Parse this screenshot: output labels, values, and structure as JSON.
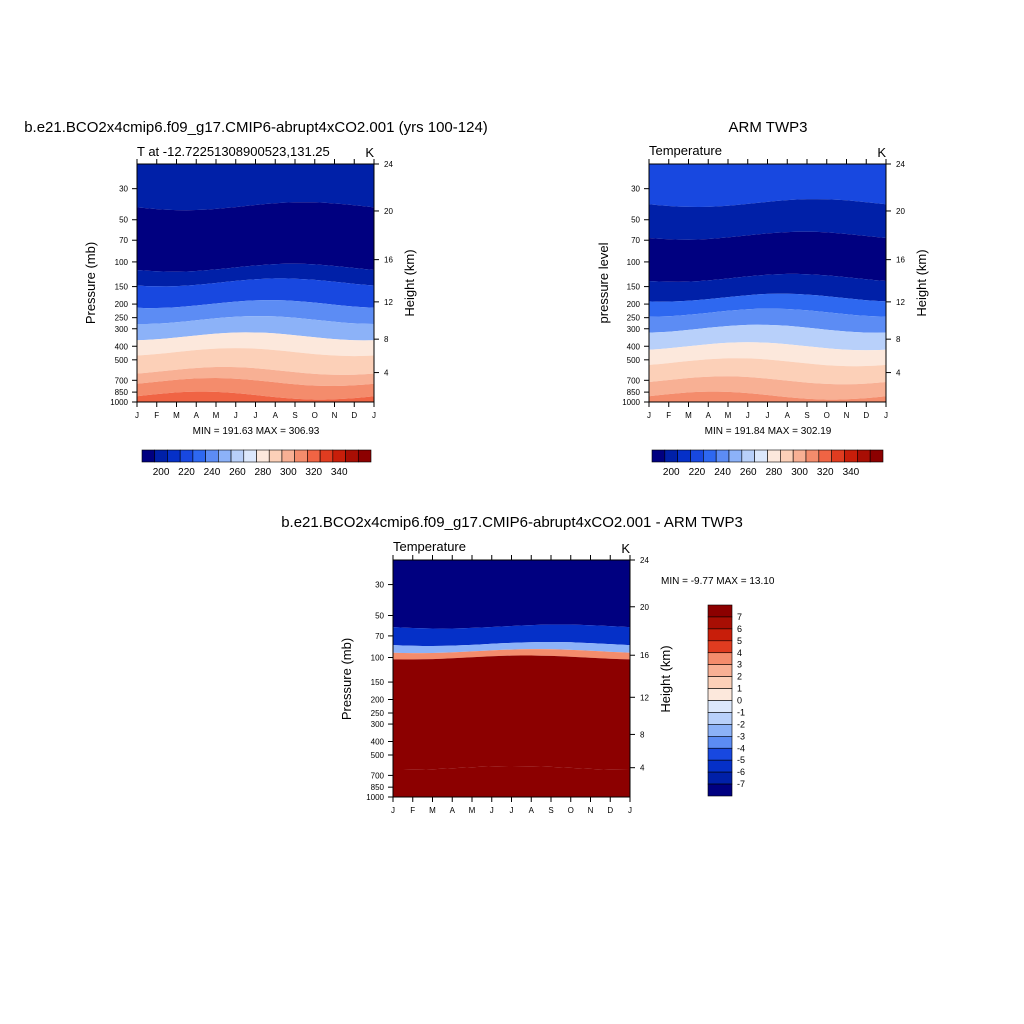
{
  "chart_data": [
    {
      "type": "heatmap",
      "title": "b.e21.BCO2x4cmip6.f09_g17.CMIP6-abrupt4xCO2.001 (yrs 100-124)",
      "subtitle_left": "T at -12.72251308900523,131.25",
      "units": "K",
      "ylabel": "Pressure (mb)",
      "ylabel_right": "Height (km)",
      "x_ticks": [
        "J",
        "F",
        "M",
        "A",
        "M",
        "J",
        "J",
        "A",
        "S",
        "O",
        "N",
        "D",
        "J"
      ],
      "y_ticks": [
        30,
        50,
        70,
        100,
        150,
        200,
        250,
        300,
        400,
        500,
        700,
        850,
        1000
      ],
      "y_right_ticks": [
        4,
        8,
        12,
        16,
        20,
        24
      ],
      "y_range_mb": [
        1000,
        20
      ],
      "stats": "MIN = 191.63 MAX = 306.93",
      "colorbar_ticks": [
        "200",
        "220",
        "240",
        "260",
        "280",
        "300",
        "320",
        "340"
      ],
      "colorbar_levels": [
        190,
        200,
        210,
        220,
        230,
        240,
        250,
        260,
        270,
        280,
        290,
        300,
        310,
        320,
        330,
        340
      ],
      "bands_approx_K_by_pressure": [
        {
          "p_mb": [
            20,
            40
          ],
          "value": 205
        },
        {
          "p_mb": [
            40,
            110
          ],
          "value": 195
        },
        {
          "p_mb": [
            110,
            140
          ],
          "value": 205
        },
        {
          "p_mb": [
            140,
            200
          ],
          "value": 215
        },
        {
          "p_mb": [
            200,
            260
          ],
          "value": 235
        },
        {
          "p_mb": [
            260,
            340
          ],
          "value": 245
        },
        {
          "p_mb": [
            340,
            440
          ],
          "value": 265
        },
        {
          "p_mb": [
            440,
            600
          ],
          "value": 275
        },
        {
          "p_mb": [
            600,
            720
          ],
          "value": 285
        },
        {
          "p_mb": [
            720,
            900
          ],
          "value": 295
        },
        {
          "p_mb": [
            900,
            1000
          ],
          "value": 305
        }
      ]
    },
    {
      "type": "heatmap",
      "title": "ARM TWP3",
      "subtitle_left": "Temperature",
      "units": "K",
      "ylabel": "pressure level",
      "ylabel_right": "Height (km)",
      "x_ticks": [
        "J",
        "F",
        "M",
        "A",
        "M",
        "J",
        "J",
        "A",
        "S",
        "O",
        "N",
        "D",
        "J"
      ],
      "y_ticks": [
        30,
        50,
        70,
        100,
        150,
        200,
        250,
        300,
        400,
        500,
        700,
        850,
        1000
      ],
      "y_right_ticks": [
        4,
        8,
        12,
        16,
        20,
        24
      ],
      "y_range_mb": [
        1000,
        20
      ],
      "stats": "MIN = 191.84 MAX = 302.19",
      "colorbar_ticks": [
        "200",
        "220",
        "240",
        "260",
        "280",
        "300",
        "320",
        "340"
      ],
      "colorbar_levels": [
        190,
        200,
        210,
        220,
        230,
        240,
        250,
        260,
        270,
        280,
        290,
        300,
        310,
        320,
        330,
        340
      ],
      "bands_approx_K_by_pressure": [
        {
          "p_mb": [
            20,
            38
          ],
          "value": 215
        },
        {
          "p_mb": [
            38,
            65
          ],
          "value": 205
        },
        {
          "p_mb": [
            65,
            130
          ],
          "value": 195
        },
        {
          "p_mb": [
            130,
            180
          ],
          "value": 205
        },
        {
          "p_mb": [
            180,
            230
          ],
          "value": 225
        },
        {
          "p_mb": [
            230,
            300
          ],
          "value": 235
        },
        {
          "p_mb": [
            300,
            400
          ],
          "value": 255
        },
        {
          "p_mb": [
            400,
            520
          ],
          "value": 265
        },
        {
          "p_mb": [
            520,
            700
          ],
          "value": 275
        },
        {
          "p_mb": [
            700,
            900
          ],
          "value": 285
        },
        {
          "p_mb": [
            900,
            1000
          ],
          "value": 295
        }
      ]
    },
    {
      "type": "heatmap",
      "title": "b.e21.BCO2x4cmip6.f09_g17.CMIP6-abrupt4xCO2.001 - ARM TWP3",
      "subtitle_left": "Temperature",
      "units": "K",
      "ylabel": "Pressure (mb)",
      "ylabel_right": "Height (km)",
      "x_ticks": [
        "J",
        "F",
        "M",
        "A",
        "M",
        "J",
        "J",
        "A",
        "S",
        "O",
        "N",
        "D",
        "J"
      ],
      "y_ticks": [
        30,
        50,
        70,
        100,
        150,
        200,
        250,
        300,
        400,
        500,
        700,
        850,
        1000
      ],
      "y_right_ticks": [
        4,
        8,
        12,
        16,
        20,
        24
      ],
      "y_range_mb": [
        1000,
        20
      ],
      "stats": "MIN =  -9.77 MAX =  13.10",
      "colorbar_ticks": [
        "7",
        "6",
        "5",
        "4",
        "3",
        "2",
        "1",
        "0",
        "-1",
        "-2",
        "-3",
        "-4",
        "-5",
        "-6",
        "-7"
      ],
      "colorbar_levels": [
        -7,
        -6,
        -5,
        -4,
        -3,
        -2,
        -1,
        0,
        1,
        2,
        3,
        4,
        5,
        6,
        7
      ],
      "bands_approx_K_by_pressure": [
        {
          "p_mb": [
            20,
            60
          ],
          "value": -8
        },
        {
          "p_mb": [
            60,
            80
          ],
          "value": -5
        },
        {
          "p_mb": [
            80,
            90
          ],
          "value": -2
        },
        {
          "p_mb": [
            90,
            100
          ],
          "value": 3
        },
        {
          "p_mb": [
            100,
            620
          ],
          "value": 8
        },
        {
          "p_mb": [
            620,
            1000
          ],
          "value": 6.5
        }
      ]
    }
  ],
  "palette": [
    "#000080",
    "#0020a8",
    "#0530c8",
    "#1848e0",
    "#2e68f0",
    "#5c8cf4",
    "#8cb2f8",
    "#b8d0fa",
    "#dce8fc",
    "#fce8dc",
    "#fcd0b8",
    "#f8b094",
    "#f48c6c",
    "#f06444",
    "#e03c20",
    "#c81e0a",
    "#a80e04",
    "#8c0000"
  ]
}
